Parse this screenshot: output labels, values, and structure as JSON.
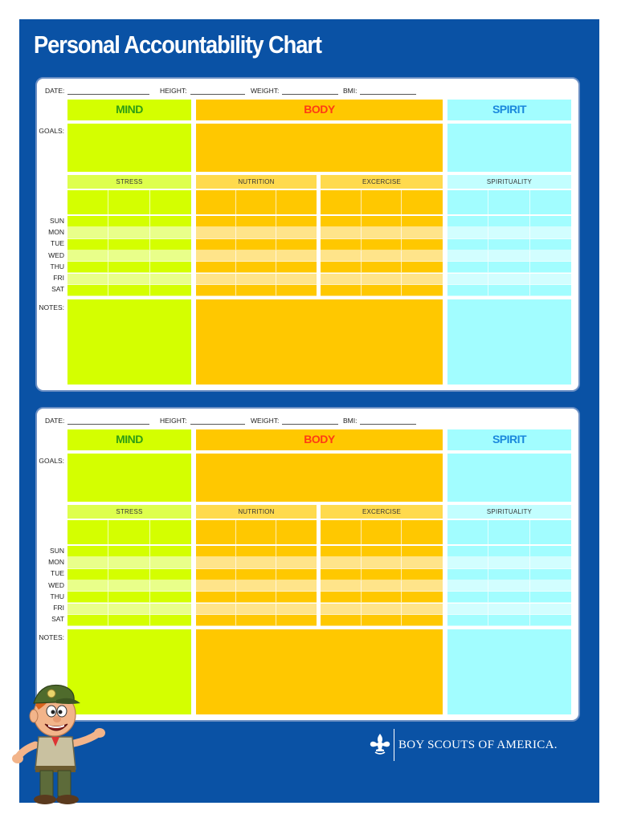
{
  "title": "Personal Accountability Chart",
  "fields": [
    "DATE:",
    "HEIGHT:",
    "WEIGHT:",
    "BMI:"
  ],
  "row_labels": {
    "goals": "GOALS:",
    "notes": "NOTES:"
  },
  "days": [
    "SUN",
    "MON",
    "TUE",
    "WED",
    "THU",
    "FRI",
    "SAT"
  ],
  "sections": {
    "mind": "MIND",
    "body": "BODY",
    "spirit": "SPIRIT"
  },
  "subsections": {
    "stress": "STRESS",
    "nutrition": "NUTRITION",
    "excercise": "EXCERCISE",
    "spirituality": "SPIRITUALITY"
  },
  "colors": {
    "frame": "#0a52a5",
    "mind": "#d4ff00",
    "body": "#ffc800",
    "spirit": "#a2fdff",
    "mind_text": "#2f9e14",
    "body_text": "#ff3b14",
    "spirit_text": "#1a88dc"
  },
  "brand": {
    "name": "BOY SCOUTS OF AMERICA.",
    "logo_icon": "fleur-de-lis-icon",
    "mascot_icon": "scout-mascot-icon"
  }
}
